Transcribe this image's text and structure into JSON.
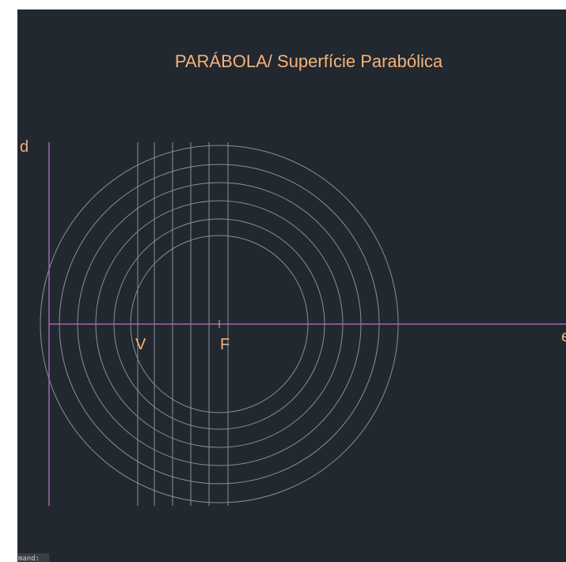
{
  "title": "PARÁBOLA/ Superfície Parabólica",
  "labels": {
    "directrix": "d",
    "axis": "e",
    "vertex": "V",
    "focus": "F"
  },
  "command_line": "mand:"
}
